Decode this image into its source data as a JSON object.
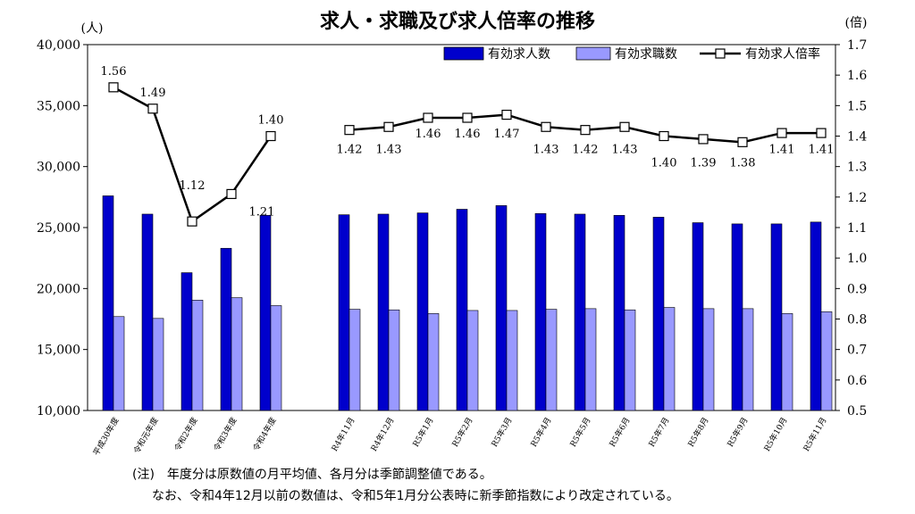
{
  "title": "求人・求職及び求人倍率の推移",
  "notes": [
    "(注)　年度分は原数値の月平均値、各月分は季節調整値である。",
    "なお、令和4年12月以前の数値は、令和5年1月分公表時に新季節指数により改定されている。"
  ],
  "chart_data": {
    "type": "bar",
    "title": "求人・求職及び求人倍率の推移",
    "y_left_unit": "(人)",
    "y_right_unit": "(倍)",
    "ylim_left": [
      10000,
      40000
    ],
    "yticks_left": [
      "10,000",
      "15,000",
      "20,000",
      "25,000",
      "30,000",
      "35,000",
      "40,000"
    ],
    "ylim_right": [
      0.5,
      1.7
    ],
    "yticks_right": [
      "0.5",
      "0.6",
      "0.7",
      "0.8",
      "0.9",
      "1.0",
      "1.1",
      "1.2",
      "1.3",
      "1.4",
      "1.5",
      "1.6",
      "1.7"
    ],
    "legend_position": "top-right",
    "categories": [
      "平成30年度",
      "令和元年度",
      "令和2年度",
      "令和3年度",
      "令和4年度",
      "R4年11月",
      "R4年12月",
      "R5年1月",
      "R5年2月",
      "R5年3月",
      "R5年4月",
      "R5年5月",
      "R5年6月",
      "R5年7月",
      "R5年8月",
      "R5年9月",
      "R5年10月",
      "R5年11月"
    ],
    "series": [
      {
        "name": "有効求人数",
        "type": "bar",
        "axis": "left",
        "color": "#0000cc",
        "values": [
          27600,
          26100,
          21300,
          23300,
          26000,
          26050,
          26100,
          26200,
          26500,
          26800,
          26150,
          26100,
          26000,
          25850,
          25400,
          25300,
          25300,
          25450
        ]
      },
      {
        "name": "有効求職数",
        "type": "bar",
        "axis": "left",
        "color": "#9999ff",
        "values": [
          17700,
          17550,
          19050,
          19250,
          18600,
          18300,
          18250,
          17950,
          18200,
          18200,
          18300,
          18350,
          18250,
          18450,
          18350,
          18350,
          17950,
          18100
        ]
      },
      {
        "name": "有効求人倍率",
        "type": "line",
        "axis": "right",
        "color": "#000000",
        "values": [
          1.56,
          1.49,
          1.12,
          1.21,
          1.4,
          1.42,
          1.43,
          1.46,
          1.46,
          1.47,
          1.43,
          1.42,
          1.43,
          1.4,
          1.39,
          1.38,
          1.41,
          1.41
        ],
        "labels": [
          "1.56",
          "1.49",
          "1.12",
          "1.21",
          "1.40",
          "1.42",
          "1.43",
          "1.46",
          "1.46",
          "1.47",
          "1.43",
          "1.42",
          "1.43",
          "1.40",
          "1.39",
          "1.38",
          "1.41",
          "1.41"
        ]
      }
    ]
  }
}
